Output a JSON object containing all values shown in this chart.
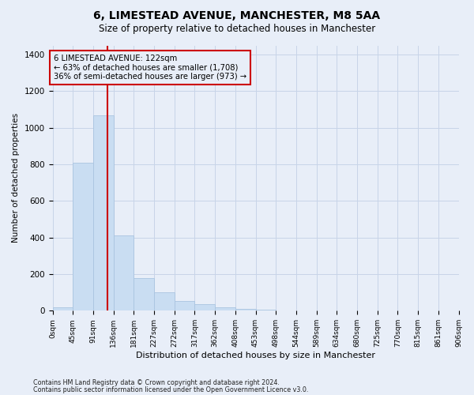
{
  "title1": "6, LIMESTEAD AVENUE, MANCHESTER, M8 5AA",
  "title2": "Size of property relative to detached houses in Manchester",
  "xlabel": "Distribution of detached houses by size in Manchester",
  "ylabel": "Number of detached properties",
  "bar_color": "#c9ddf2",
  "bar_edgecolor": "#aac4e0",
  "vline_x": 122,
  "vline_color": "#cc0000",
  "annotation_title": "6 LIMESTEAD AVENUE: 122sqm",
  "annotation_line2": "← 63% of detached houses are smaller (1,708)",
  "annotation_line3": "36% of semi-detached houses are larger (973) →",
  "annotation_box_color": "#cc0000",
  "bin_edges": [
    0,
    45,
    91,
    136,
    181,
    227,
    272,
    317,
    362,
    408,
    453,
    498,
    544,
    589,
    634,
    680,
    725,
    770,
    815,
    861,
    906
  ],
  "bar_heights": [
    20,
    810,
    1070,
    410,
    180,
    100,
    55,
    35,
    20,
    10,
    5,
    3,
    2,
    1,
    0,
    0,
    0,
    0,
    0,
    0
  ],
  "ylim": [
    0,
    1450
  ],
  "yticks": [
    0,
    200,
    400,
    600,
    800,
    1000,
    1200,
    1400
  ],
  "grid_color": "#c8d4e8",
  "bg_color": "#e8eef8",
  "footnote1": "Contains HM Land Registry data © Crown copyright and database right 2024.",
  "footnote2": "Contains public sector information licensed under the Open Government Licence v3.0."
}
